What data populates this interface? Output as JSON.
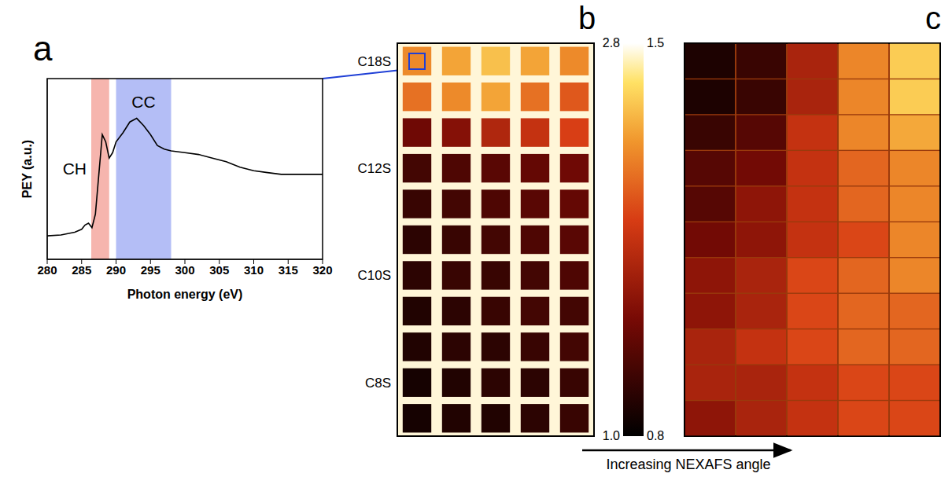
{
  "chart_data": [
    {
      "panel": "a",
      "type": "line",
      "xlabel": "Photon energy (eV)",
      "ylabel": "PEY (a.u.)",
      "x": [
        280,
        282,
        284,
        285,
        285.5,
        286,
        286.5,
        287,
        287.5,
        288,
        288.5,
        289,
        289.5,
        290,
        291,
        292,
        293,
        294,
        295,
        296,
        297,
        298,
        300,
        302,
        304,
        306,
        308,
        310,
        312,
        314,
        316,
        318,
        320
      ],
      "values": [
        0.13,
        0.135,
        0.15,
        0.166,
        0.19,
        0.2,
        0.175,
        0.25,
        0.47,
        0.69,
        0.65,
        0.56,
        0.59,
        0.65,
        0.7,
        0.76,
        0.78,
        0.74,
        0.69,
        0.63,
        0.61,
        0.6,
        0.59,
        0.58,
        0.56,
        0.54,
        0.51,
        0.49,
        0.48,
        0.47,
        0.47,
        0.47,
        0.47
      ],
      "color": "#000000",
      "xlim": [
        280,
        320
      ],
      "xticks": [
        280,
        285,
        290,
        295,
        300,
        305,
        310,
        315,
        320
      ],
      "ylim": [
        0,
        1
      ],
      "yticks": [],
      "tick_labels": "x",
      "annotations": [
        {
          "label": "CH",
          "x_range": [
            286.4,
            289
          ],
          "color": "#f4a8a0"
        },
        {
          "label": "CC",
          "x_range": [
            290,
            298
          ],
          "color": "#a7b3f4"
        }
      ]
    },
    {
      "panel": "b",
      "type": "heatmap",
      "tick_labels": "y",
      "y_categories": [
        "C18S",
        null,
        null,
        "C12S",
        null,
        null,
        "C10S",
        null,
        null,
        "C8S",
        null
      ],
      "cells": [
        [
          2.3,
          2.4,
          2.5,
          2.4,
          2.3
        ],
        [
          2.2,
          2.3,
          2.4,
          2.2,
          2.1
        ],
        [
          1.5,
          1.6,
          1.8,
          1.9,
          2.0
        ],
        [
          1.3,
          1.35,
          1.4,
          1.45,
          1.5
        ],
        [
          1.25,
          1.3,
          1.35,
          1.4,
          1.45
        ],
        [
          1.2,
          1.25,
          1.3,
          1.35,
          1.4
        ],
        [
          1.2,
          1.25,
          1.25,
          1.3,
          1.35
        ],
        [
          1.15,
          1.2,
          1.25,
          1.3,
          1.3
        ],
        [
          1.15,
          1.2,
          1.2,
          1.25,
          1.3
        ],
        [
          1.1,
          1.15,
          1.2,
          1.2,
          1.25
        ],
        [
          1.1,
          1.15,
          1.15,
          1.2,
          1.25
        ]
      ],
      "colorbar": {
        "range": [
          1,
          2.8
        ],
        "ticks": [
          {
            "value": 1,
            "label": "1.0"
          },
          2.8
        ]
      }
    },
    {
      "panel": "c",
      "type": "heatmap",
      "tick_labels": false,
      "xlabel": "Increasing NEXAFS angle",
      "cells": [
        [
          0.85,
          0.9,
          1.1,
          1.3,
          1.4
        ],
        [
          0.85,
          0.9,
          1.1,
          1.3,
          1.4
        ],
        [
          0.9,
          0.95,
          1.15,
          1.3,
          1.35
        ],
        [
          0.95,
          1.0,
          1.15,
          1.25,
          1.3
        ],
        [
          0.95,
          1.05,
          1.15,
          1.25,
          1.3
        ],
        [
          1.0,
          1.05,
          1.15,
          1.2,
          1.3
        ],
        [
          1.05,
          1.1,
          1.2,
          1.25,
          1.3
        ],
        [
          1.05,
          1.1,
          1.2,
          1.25,
          1.25
        ],
        [
          1.1,
          1.15,
          1.2,
          1.25,
          1.25
        ],
        [
          1.1,
          1.1,
          1.15,
          1.2,
          1.2
        ],
        [
          1.05,
          1.1,
          1.15,
          1.2,
          1.2
        ]
      ],
      "colorbar": {
        "range": [
          0.8,
          1.5
        ],
        "ticks": [
          0.8,
          1.5
        ]
      }
    }
  ]
}
